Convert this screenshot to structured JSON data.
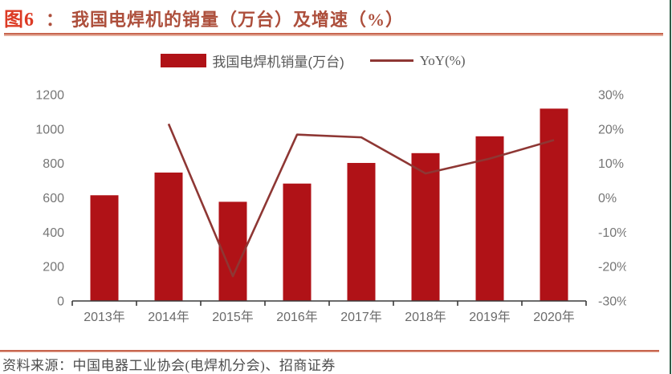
{
  "header": {
    "figure_label": "图6",
    "separator": "：",
    "title": "我国电焊机的销量（万台）及增速（%）"
  },
  "legend": {
    "bar_label": "我国电焊机销量(万台)",
    "line_label": "YoY(%)"
  },
  "footer": {
    "source": "资料来源：中国电器工业协会(电焊机分会)、招商证券"
  },
  "colors": {
    "bar": "#B01217",
    "line": "#8E3734",
    "axis_line": "#3a3a3a",
    "left_tick_text": "#767676",
    "right_tick_text": "#767676",
    "x_tick_text": "#6a6a6a",
    "accent_rule": "#C7664F",
    "page_border_green": "#2E5B46"
  },
  "chart_data": {
    "type": "bar",
    "subtype": "bar+line dual axis",
    "title": "我国电焊机的销量（万台）及增速（%）",
    "categories": [
      "2013年",
      "2014年",
      "2015年",
      "2016年",
      "2017年",
      "2018年",
      "2019年",
      "2020年"
    ],
    "series": [
      {
        "name": "我国电焊机销量(万台)",
        "type": "bar",
        "axis": "left",
        "values": [
          615,
          747,
          577,
          683,
          803,
          860,
          958,
          1119
        ]
      },
      {
        "name": "YoY(%)",
        "type": "line",
        "axis": "right",
        "values": [
          null,
          21.5,
          -22.8,
          18.4,
          17.6,
          7.1,
          11.4,
          16.8
        ]
      }
    ],
    "left_axis": {
      "min": 0,
      "max": 1200,
      "step": 200,
      "tick_labels": [
        "0",
        "200",
        "400",
        "600",
        "800",
        "1000",
        "1200"
      ],
      "tick_values": [
        0,
        200,
        400,
        600,
        800,
        1000,
        1200
      ]
    },
    "right_axis": {
      "min": -30,
      "max": 30,
      "step": 10,
      "tick_labels": [
        "-30%",
        "-20%",
        "-10%",
        "0%",
        "10%",
        "20%",
        "30%"
      ],
      "tick_values": [
        -30,
        -20,
        -10,
        0,
        10,
        20,
        30
      ]
    },
    "grid": false,
    "legend_position": "top-center"
  }
}
